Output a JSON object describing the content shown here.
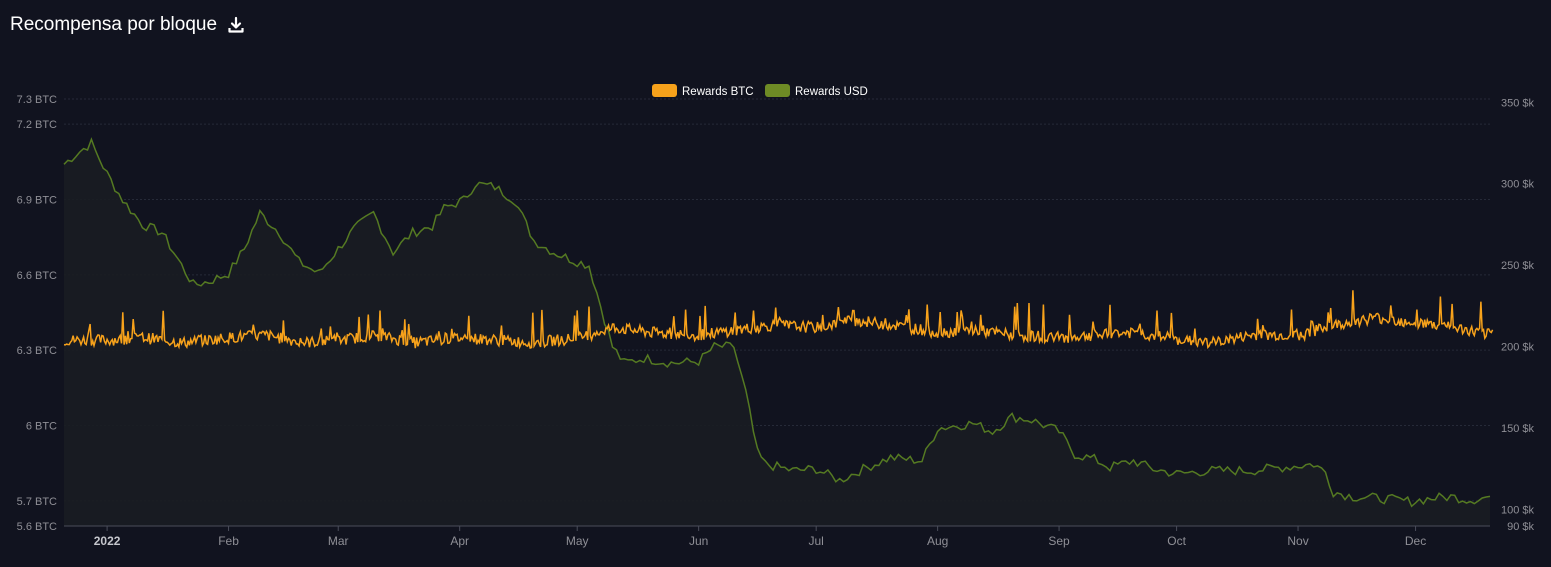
{
  "header": {
    "title": "Recompensa por bloque",
    "download_icon": "download-icon"
  },
  "colors": {
    "background": "#11131f",
    "btc": "#f7a21b",
    "usd": "#6e8b25",
    "usd_line": "#557a22",
    "grid": "#262a38",
    "axis_text": "#8f8f96"
  },
  "chart_data": {
    "type": "line",
    "title": "Recompensa por bloque",
    "legend_position": "top-center",
    "legend": [
      "Rewards BTC",
      "Rewards USD"
    ],
    "x_tick_labels": [
      "2022",
      "Feb",
      "Mar",
      "Apr",
      "May",
      "Jun",
      "Jul",
      "Aug",
      "Sep",
      "Oct",
      "Nov",
      "Dec"
    ],
    "x_tick_dates": [
      "2022-01-01",
      "2022-02-01",
      "2022-03-01",
      "2022-04-01",
      "2022-05-01",
      "2022-06-01",
      "2022-07-01",
      "2022-08-01",
      "2022-09-01",
      "2022-10-01",
      "2022-11-01",
      "2022-12-01"
    ],
    "x_range": [
      "2021-12-21",
      "2022-12-20"
    ],
    "y_left": {
      "tick_labels": [
        "7.3 BTC",
        "7.2 BTC",
        "6.9 BTC",
        "6.6 BTC",
        "6.3 BTC",
        "6 BTC",
        "5.7 BTC",
        "5.6 BTC"
      ],
      "tick_values": [
        7.3,
        7.2,
        6.9,
        6.6,
        6.3,
        6.0,
        5.7,
        5.6
      ],
      "range": [
        5.6,
        7.3
      ]
    },
    "y_right": {
      "tick_labels": [
        "350 $k",
        "300 $k",
        "250 $k",
        "200 $k",
        "150 $k",
        "100 $k",
        "90 $k"
      ],
      "tick_values": [
        350,
        300,
        250,
        200,
        150,
        100,
        90
      ],
      "range": [
        90,
        352
      ]
    },
    "grid": true,
    "series": [
      {
        "name": "Rewards BTC",
        "axis": "left",
        "color": "#f7a21b",
        "x": [
          "2021-12-21",
          "2022-01-01",
          "2022-01-10",
          "2022-01-20",
          "2022-02-01",
          "2022-02-10",
          "2022-02-20",
          "2022-03-01",
          "2022-03-10",
          "2022-03-20",
          "2022-04-01",
          "2022-04-10",
          "2022-04-20",
          "2022-05-01",
          "2022-05-10",
          "2022-05-20",
          "2022-06-01",
          "2022-06-10",
          "2022-06-20",
          "2022-07-01",
          "2022-07-10",
          "2022-07-20",
          "2022-08-01",
          "2022-08-10",
          "2022-08-20",
          "2022-09-01",
          "2022-09-10",
          "2022-09-20",
          "2022-10-01",
          "2022-10-10",
          "2022-10-20",
          "2022-11-01",
          "2022-11-10",
          "2022-11-20",
          "2022-12-01",
          "2022-12-10",
          "2022-12-20"
        ],
        "values": [
          6.34,
          6.34,
          6.35,
          6.33,
          6.35,
          6.36,
          6.33,
          6.34,
          6.36,
          6.33,
          6.35,
          6.34,
          6.33,
          6.35,
          6.39,
          6.37,
          6.36,
          6.38,
          6.4,
          6.39,
          6.42,
          6.4,
          6.37,
          6.38,
          6.36,
          6.35,
          6.36,
          6.37,
          6.34,
          6.33,
          6.36,
          6.36,
          6.4,
          6.43,
          6.41,
          6.39,
          6.36
        ]
      },
      {
        "name": "Rewards USD",
        "axis": "right",
        "color": "#6e8b25",
        "x": [
          "2021-12-21",
          "2021-12-24",
          "2021-12-28",
          "2022-01-01",
          "2022-01-05",
          "2022-01-10",
          "2022-01-15",
          "2022-01-20",
          "2022-01-23",
          "2022-01-27",
          "2022-02-01",
          "2022-02-05",
          "2022-02-09",
          "2022-02-14",
          "2022-02-19",
          "2022-02-24",
          "2022-03-01",
          "2022-03-05",
          "2022-03-10",
          "2022-03-15",
          "2022-03-20",
          "2022-03-25",
          "2022-03-28",
          "2022-04-02",
          "2022-04-05",
          "2022-04-10",
          "2022-04-15",
          "2022-04-20",
          "2022-04-25",
          "2022-04-30",
          "2022-05-04",
          "2022-05-07",
          "2022-05-10",
          "2022-05-13",
          "2022-05-18",
          "2022-05-25",
          "2022-06-01",
          "2022-06-05",
          "2022-06-10",
          "2022-06-13",
          "2022-06-16",
          "2022-06-18",
          "2022-06-25",
          "2022-07-01",
          "2022-07-07",
          "2022-07-13",
          "2022-07-20",
          "2022-07-28",
          "2022-08-01",
          "2022-08-10",
          "2022-08-15",
          "2022-08-20",
          "2022-08-25",
          "2022-09-01",
          "2022-09-05",
          "2022-09-10",
          "2022-09-14",
          "2022-09-20",
          "2022-09-25",
          "2022-10-01",
          "2022-10-10",
          "2022-10-20",
          "2022-11-01",
          "2022-11-05",
          "2022-11-08",
          "2022-11-10",
          "2022-11-15",
          "2022-11-22",
          "2022-11-30",
          "2022-12-05",
          "2022-12-10",
          "2022-12-15",
          "2022-12-20"
        ],
        "values": [
          312,
          318,
          325,
          306,
          290,
          275,
          270,
          250,
          238,
          240,
          245,
          260,
          282,
          270,
          252,
          245,
          260,
          272,
          282,
          258,
          270,
          274,
          285,
          290,
          300,
          298,
          290,
          265,
          258,
          253,
          250,
          225,
          200,
          190,
          193,
          190,
          191,
          200,
          200,
          172,
          135,
          128,
          124,
          125,
          118,
          125,
          132,
          130,
          150,
          153,
          148,
          157,
          155,
          148,
          134,
          131,
          126,
          130,
          125,
          122,
          124,
          124,
          127,
          128,
          123,
          111,
          108,
          107,
          105,
          107,
          108,
          106,
          108
        ]
      }
    ]
  }
}
